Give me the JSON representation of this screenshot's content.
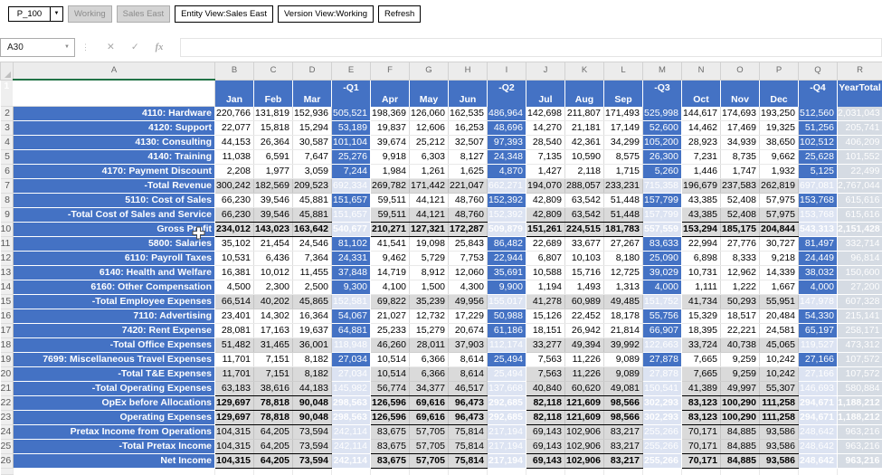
{
  "toolbar": {
    "pov_value": "P_100",
    "buttons": [
      {
        "label": "Working",
        "disabled": true
      },
      {
        "label": "Sales East",
        "disabled": true
      },
      {
        "label": "Entity View:Sales East",
        "disabled": false
      },
      {
        "label": "Version View:Working",
        "disabled": false
      },
      {
        "label": "Refresh",
        "disabled": false
      }
    ]
  },
  "formula_bar": {
    "name_box": "A30",
    "cancel_icon": "✕",
    "enter_icon": "✓",
    "fx_icon": "fx",
    "formula_value": ""
  },
  "colors": {
    "accent_blue": "#4472C4",
    "pale_quarter_blue": "#DCE3F2",
    "year_total_gray": "#D5DBE3",
    "total_row_gray": "#DADADA",
    "selection_green": "#217346"
  },
  "grid": {
    "col_letters": [
      "A",
      "B",
      "C",
      "D",
      "E",
      "F",
      "G",
      "H",
      "I",
      "J",
      "K",
      "L",
      "M",
      "N",
      "O",
      "P",
      "Q",
      "R"
    ],
    "header": {
      "months": [
        "Jan",
        "Feb",
        "Mar",
        "Apr",
        "May",
        "Jun",
        "Jul",
        "Aug",
        "Sep",
        "Oct",
        "Nov",
        "Dec"
      ],
      "quarters": [
        "-Q1",
        "-Q2",
        "-Q3",
        "-Q4"
      ],
      "year_total": "YearTotal",
      "header_row_num": "1"
    },
    "rows": [
      {
        "num": 2,
        "label": "4110: Hardware",
        "indent": 1,
        "type": "input",
        "bb": false,
        "values": [
          "220,766",
          "131,819",
          "152,936",
          "505,521",
          "198,369",
          "126,060",
          "162,535",
          "486,964",
          "142,698",
          "211,807",
          "171,493",
          "525,998",
          "144,617",
          "174,693",
          "193,250",
          "512,560",
          "2,031,043"
        ]
      },
      {
        "num": 3,
        "label": "4120: Support",
        "indent": 1,
        "type": "input",
        "bb": false,
        "values": [
          "22,077",
          "15,818",
          "15,294",
          "53,189",
          "19,837",
          "12,606",
          "16,253",
          "48,696",
          "14,270",
          "21,181",
          "17,149",
          "52,600",
          "14,462",
          "17,469",
          "19,325",
          "51,256",
          "205,741"
        ]
      },
      {
        "num": 4,
        "label": "4130: Consulting",
        "indent": 1,
        "type": "input",
        "bb": false,
        "values": [
          "44,153",
          "26,364",
          "30,587",
          "101,104",
          "39,674",
          "25,212",
          "32,507",
          "97,393",
          "28,540",
          "42,361",
          "34,299",
          "105,200",
          "28,923",
          "34,939",
          "38,650",
          "102,512",
          "406,209"
        ]
      },
      {
        "num": 5,
        "label": "4140: Training",
        "indent": 1,
        "type": "input",
        "bb": false,
        "values": [
          "11,038",
          "6,591",
          "7,647",
          "25,276",
          "9,918",
          "6,303",
          "8,127",
          "24,348",
          "7,135",
          "10,590",
          "8,575",
          "26,300",
          "7,231",
          "8,735",
          "9,662",
          "25,628",
          "101,552"
        ]
      },
      {
        "num": 6,
        "label": "4170: Payment Discount",
        "indent": 1,
        "type": "input",
        "bb": false,
        "values": [
          "2,208",
          "1,977",
          "3,059",
          "7,244",
          "1,984",
          "1,261",
          "1,625",
          "4,870",
          "1,427",
          "2,118",
          "1,715",
          "5,260",
          "1,446",
          "1,747",
          "1,932",
          "5,125",
          "22,499"
        ]
      },
      {
        "num": 7,
        "label": "-Total Revenue",
        "indent": 0,
        "type": "total",
        "bb": false,
        "values": [
          "300,242",
          "182,569",
          "209,523",
          "692,334",
          "269,782",
          "171,442",
          "221,047",
          "662,271",
          "194,070",
          "288,057",
          "233,231",
          "715,358",
          "196,679",
          "237,583",
          "262,819",
          "697,081",
          "2,767,044"
        ]
      },
      {
        "num": 8,
        "label": "5110: Cost of Sales",
        "indent": 1,
        "type": "input",
        "bb": false,
        "values": [
          "66,230",
          "39,546",
          "45,881",
          "151,657",
          "59,511",
          "44,121",
          "48,760",
          "152,392",
          "42,809",
          "63,542",
          "51,448",
          "157,799",
          "43,385",
          "52,408",
          "57,975",
          "153,768",
          "615,616"
        ]
      },
      {
        "num": 9,
        "label": "-Total Cost of Sales and Service",
        "indent": 0,
        "type": "total",
        "bb": true,
        "values": [
          "66,230",
          "39,546",
          "45,881",
          "151,657",
          "59,511",
          "44,121",
          "48,760",
          "152,392",
          "42,809",
          "63,542",
          "51,448",
          "157,799",
          "43,385",
          "52,408",
          "57,975",
          "153,768",
          "615,616"
        ]
      },
      {
        "num": 10,
        "label": "Gross Profit",
        "indent": 0,
        "type": "bold",
        "bb": true,
        "values": [
          "234,012",
          "143,023",
          "163,642",
          "540,677",
          "210,271",
          "127,321",
          "172,287",
          "509,879",
          "151,261",
          "224,515",
          "181,783",
          "557,559",
          "153,294",
          "185,175",
          "204,844",
          "543,313",
          "2,151,428"
        ]
      },
      {
        "num": 11,
        "label": "5800: Salaries",
        "indent": 1,
        "type": "input",
        "bb": false,
        "values": [
          "35,102",
          "21,454",
          "24,546",
          "81,102",
          "41,541",
          "19,098",
          "25,843",
          "86,482",
          "22,689",
          "33,677",
          "27,267",
          "83,633",
          "22,994",
          "27,776",
          "30,727",
          "81,497",
          "332,714"
        ]
      },
      {
        "num": 12,
        "label": "6110: Payroll Taxes",
        "indent": 1,
        "type": "input",
        "bb": false,
        "values": [
          "10,531",
          "6,436",
          "7,364",
          "24,331",
          "9,462",
          "5,729",
          "7,753",
          "22,944",
          "6,807",
          "10,103",
          "8,180",
          "25,090",
          "6,898",
          "8,333",
          "9,218",
          "24,449",
          "96,814"
        ]
      },
      {
        "num": 13,
        "label": "6140: Health and Welfare",
        "indent": 1,
        "type": "input",
        "bb": false,
        "values": [
          "16,381",
          "10,012",
          "11,455",
          "37,848",
          "14,719",
          "8,912",
          "12,060",
          "35,691",
          "10,588",
          "15,716",
          "12,725",
          "39,029",
          "10,731",
          "12,962",
          "14,339",
          "38,032",
          "150,600"
        ]
      },
      {
        "num": 14,
        "label": "6160: Other Compensation",
        "indent": 1,
        "type": "input",
        "bb": false,
        "values": [
          "4,500",
          "2,300",
          "2,500",
          "9,300",
          "4,100",
          "1,500",
          "4,300",
          "9,900",
          "1,194",
          "1,493",
          "1,313",
          "4,000",
          "1,111",
          "1,222",
          "1,667",
          "4,000",
          "27,200"
        ]
      },
      {
        "num": 15,
        "label": "-Total Employee Expenses",
        "indent": 0,
        "type": "total",
        "bb": false,
        "values": [
          "66,514",
          "40,202",
          "45,865",
          "152,581",
          "69,822",
          "35,239",
          "49,956",
          "155,017",
          "41,278",
          "60,989",
          "49,485",
          "151,752",
          "41,734",
          "50,293",
          "55,951",
          "147,978",
          "607,328"
        ]
      },
      {
        "num": 16,
        "label": "7110: Advertising",
        "indent": 2,
        "type": "input",
        "bb": false,
        "values": [
          "23,401",
          "14,302",
          "16,364",
          "54,067",
          "21,027",
          "12,732",
          "17,229",
          "50,988",
          "15,126",
          "22,452",
          "18,178",
          "55,756",
          "15,329",
          "18,517",
          "20,484",
          "54,330",
          "215,141"
        ]
      },
      {
        "num": 17,
        "label": "7420: Rent Expense",
        "indent": 2,
        "type": "input",
        "bb": false,
        "values": [
          "28,081",
          "17,163",
          "19,637",
          "64,881",
          "25,233",
          "15,279",
          "20,674",
          "61,186",
          "18,151",
          "26,942",
          "21,814",
          "66,907",
          "18,395",
          "22,221",
          "24,581",
          "65,197",
          "258,171"
        ]
      },
      {
        "num": 18,
        "label": "-Total Office Expenses",
        "indent": 1,
        "type": "total",
        "bb": false,
        "values": [
          "51,482",
          "31,465",
          "36,001",
          "118,948",
          "46,260",
          "28,011",
          "37,903",
          "112,174",
          "33,277",
          "49,394",
          "39,992",
          "122,663",
          "33,724",
          "40,738",
          "45,065",
          "119,527",
          "473,312"
        ]
      },
      {
        "num": 19,
        "label": "7699: Miscellaneous Travel Expenses",
        "indent": 2,
        "type": "input",
        "bb": false,
        "values": [
          "11,701",
          "7,151",
          "8,182",
          "27,034",
          "10,514",
          "6,366",
          "8,614",
          "25,494",
          "7,563",
          "11,226",
          "9,089",
          "27,878",
          "7,665",
          "9,259",
          "10,242",
          "27,166",
          "107,572"
        ]
      },
      {
        "num": 20,
        "label": "-Total T&E Expenses",
        "indent": 1,
        "type": "total",
        "bb": false,
        "values": [
          "11,701",
          "7,151",
          "8,182",
          "27,034",
          "10,514",
          "6,366",
          "8,614",
          "25,494",
          "7,563",
          "11,226",
          "9,089",
          "27,878",
          "7,665",
          "9,259",
          "10,242",
          "27,166",
          "107,572"
        ]
      },
      {
        "num": 21,
        "label": "-Total Operating Expenses",
        "indent": 0,
        "type": "total",
        "bb": true,
        "values": [
          "63,183",
          "38,616",
          "44,183",
          "145,982",
          "56,774",
          "34,377",
          "46,517",
          "137,668",
          "40,840",
          "60,620",
          "49,081",
          "150,541",
          "41,389",
          "49,997",
          "55,307",
          "146,693",
          "580,884"
        ]
      },
      {
        "num": 22,
        "label": "OpEx before Allocations",
        "indent": 0,
        "type": "bold",
        "bb": true,
        "values": [
          "129,697",
          "78,818",
          "90,048",
          "298,563",
          "126,596",
          "69,616",
          "96,473",
          "292,685",
          "82,118",
          "121,609",
          "98,566",
          "302,293",
          "83,123",
          "100,290",
          "111,258",
          "294,671",
          "1,188,212"
        ]
      },
      {
        "num": 23,
        "label": "Operating Expenses",
        "indent": 0,
        "type": "bold",
        "bb": true,
        "values": [
          "129,697",
          "78,818",
          "90,048",
          "298,563",
          "126,596",
          "69,616",
          "96,473",
          "292,685",
          "82,118",
          "121,609",
          "98,566",
          "302,293",
          "83,123",
          "100,290",
          "111,258",
          "294,671",
          "1,188,212"
        ]
      },
      {
        "num": 24,
        "label": "Pretax Income from Operations",
        "indent": 1,
        "type": "total",
        "bb": false,
        "values": [
          "104,315",
          "64,205",
          "73,594",
          "242,114",
          "83,675",
          "57,705",
          "75,814",
          "217,194",
          "69,143",
          "102,906",
          "83,217",
          "255,266",
          "70,171",
          "84,885",
          "93,586",
          "248,642",
          "963,216"
        ]
      },
      {
        "num": 25,
        "label": "-Total Pretax Income",
        "indent": 0,
        "type": "total",
        "bb": true,
        "values": [
          "104,315",
          "64,205",
          "73,594",
          "242,114",
          "83,675",
          "57,705",
          "75,814",
          "217,194",
          "69,143",
          "102,906",
          "83,217",
          "255,266",
          "70,171",
          "84,885",
          "93,586",
          "248,642",
          "963,216"
        ]
      },
      {
        "num": 26,
        "label": "Net Income",
        "indent": 0,
        "type": "bold",
        "bb": true,
        "values": [
          "104,315",
          "64,205",
          "73,594",
          "242,114",
          "83,675",
          "57,705",
          "75,814",
          "217,194",
          "69,143",
          "102,906",
          "83,217",
          "255,266",
          "70,171",
          "84,885",
          "93,586",
          "248,642",
          "963,216"
        ]
      }
    ]
  }
}
